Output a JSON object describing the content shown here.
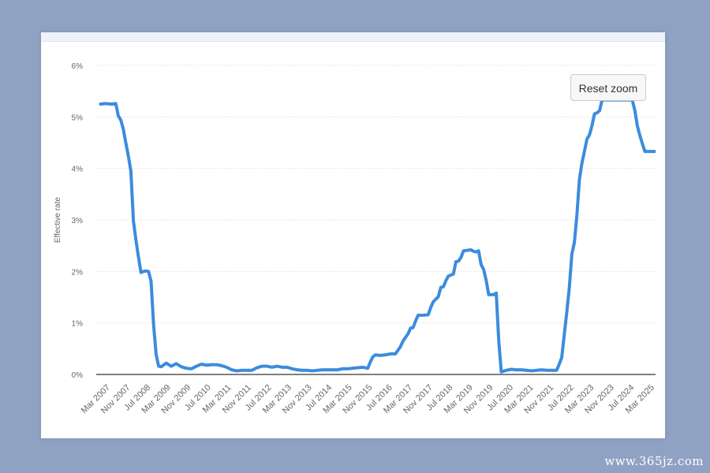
{
  "chart_data": {
    "type": "line",
    "title": "",
    "ylabel": "Effective rate",
    "xlabel": "",
    "ylim": [
      0,
      6
    ],
    "yticks": [
      "0%",
      "1%",
      "2%",
      "3%",
      "4%",
      "5%",
      "6%"
    ],
    "grid": true,
    "legend": "none",
    "line_color": "#3b8cde",
    "x_ticklabels": [
      "Mar 2007",
      "Nov 2007",
      "Jul 2008",
      "Mar 2009",
      "Nov 2009",
      "Jul 2010",
      "Mar 2011",
      "Nov 2011",
      "Jul 2012",
      "Mar 2013",
      "Nov 2013",
      "Jul 2014",
      "Mar 2015",
      "Nov 2015",
      "Jul 2016",
      "Mar 2017",
      "Nov 2017",
      "Jul 2018",
      "Mar 2019",
      "Nov 2019",
      "Jul 2020",
      "Mar 2021",
      "Nov 2021",
      "Jul 2022",
      "Mar 2023",
      "Nov 2023",
      "Jul 2024",
      "Mar 2025"
    ],
    "series": [
      {
        "points": [
          [
            "Jan 2007",
            5.25
          ],
          [
            "Mar 2007",
            5.26
          ],
          [
            "May 2007",
            5.25
          ],
          [
            "Jul 2007",
            5.26
          ],
          [
            "Aug 2007",
            5.02
          ],
          [
            "Sep 2007",
            4.94
          ],
          [
            "Oct 2007",
            4.76
          ],
          [
            "Nov 2007",
            4.49
          ],
          [
            "Dec 2007",
            4.24
          ],
          [
            "Jan 2008",
            3.94
          ],
          [
            "Feb 2008",
            2.98
          ],
          [
            "Mar 2008",
            2.61
          ],
          [
            "Apr 2008",
            2.28
          ],
          [
            "May 2008",
            1.98
          ],
          [
            "Jun 2008",
            2.0
          ],
          [
            "Jul 2008",
            2.01
          ],
          [
            "Aug 2008",
            2.0
          ],
          [
            "Sep 2008",
            1.81
          ],
          [
            "Oct 2008",
            0.97
          ],
          [
            "Nov 2008",
            0.39
          ],
          [
            "Dec 2008",
            0.16
          ],
          [
            "Jan 2009",
            0.15
          ],
          [
            "Mar 2009",
            0.22
          ],
          [
            "May 2009",
            0.16
          ],
          [
            "Jul 2009",
            0.21
          ],
          [
            "Sep 2009",
            0.15
          ],
          [
            "Nov 2009",
            0.12
          ],
          [
            "Jan 2010",
            0.11
          ],
          [
            "Mar 2010",
            0.16
          ],
          [
            "May 2010",
            0.2
          ],
          [
            "Jul 2010",
            0.18
          ],
          [
            "Sep 2010",
            0.19
          ],
          [
            "Nov 2010",
            0.19
          ],
          [
            "Jan 2011",
            0.17
          ],
          [
            "Mar 2011",
            0.14
          ],
          [
            "May 2011",
            0.09
          ],
          [
            "Jul 2011",
            0.07
          ],
          [
            "Sep 2011",
            0.08
          ],
          [
            "Nov 2011",
            0.08
          ],
          [
            "Jan 2012",
            0.08
          ],
          [
            "Mar 2012",
            0.13
          ],
          [
            "May 2012",
            0.16
          ],
          [
            "Jul 2012",
            0.16
          ],
          [
            "Sep 2012",
            0.14
          ],
          [
            "Nov 2012",
            0.16
          ],
          [
            "Jan 2013",
            0.14
          ],
          [
            "Mar 2013",
            0.14
          ],
          [
            "May 2013",
            0.11
          ],
          [
            "Jul 2013",
            0.09
          ],
          [
            "Sep 2013",
            0.08
          ],
          [
            "Nov 2013",
            0.08
          ],
          [
            "Jan 2014",
            0.07
          ],
          [
            "Mar 2014",
            0.08
          ],
          [
            "May 2014",
            0.09
          ],
          [
            "Jul 2014",
            0.09
          ],
          [
            "Sep 2014",
            0.09
          ],
          [
            "Nov 2014",
            0.09
          ],
          [
            "Jan 2015",
            0.11
          ],
          [
            "Mar 2015",
            0.11
          ],
          [
            "May 2015",
            0.12
          ],
          [
            "Jul 2015",
            0.13
          ],
          [
            "Sep 2015",
            0.14
          ],
          [
            "Nov 2015",
            0.12
          ],
          [
            "Dec 2015",
            0.24
          ],
          [
            "Jan 2016",
            0.34
          ],
          [
            "Feb 2016",
            0.38
          ],
          [
            "Apr 2016",
            0.37
          ],
          [
            "Jun 2016",
            0.38
          ],
          [
            "Aug 2016",
            0.4
          ],
          [
            "Oct 2016",
            0.4
          ],
          [
            "Dec 2016",
            0.54
          ],
          [
            "Jan 2017",
            0.65
          ],
          [
            "Mar 2017",
            0.79
          ],
          [
            "Apr 2017",
            0.9
          ],
          [
            "May 2017",
            0.91
          ],
          [
            "Jun 2017",
            1.04
          ],
          [
            "Jul 2017",
            1.15
          ],
          [
            "Sep 2017",
            1.15
          ],
          [
            "Nov 2017",
            1.16
          ],
          [
            "Dec 2017",
            1.3
          ],
          [
            "Jan 2018",
            1.41
          ],
          [
            "Mar 2018",
            1.51
          ],
          [
            "Apr 2018",
            1.69
          ],
          [
            "May 2018",
            1.7
          ],
          [
            "Jun 2018",
            1.82
          ],
          [
            "Jul 2018",
            1.91
          ],
          [
            "Sep 2018",
            1.95
          ],
          [
            "Oct 2018",
            2.19
          ],
          [
            "Nov 2018",
            2.2
          ],
          [
            "Dec 2018",
            2.27
          ],
          [
            "Jan 2019",
            2.4
          ],
          [
            "Apr 2019",
            2.42
          ],
          [
            "May 2019",
            2.39
          ],
          [
            "Jun 2019",
            2.38
          ],
          [
            "Jul 2019",
            2.4
          ],
          [
            "Aug 2019",
            2.13
          ],
          [
            "Sep 2019",
            2.04
          ],
          [
            "Oct 2019",
            1.83
          ],
          [
            "Nov 2019",
            1.55
          ],
          [
            "Dec 2019",
            1.55
          ],
          [
            "Jan 2020",
            1.55
          ],
          [
            "Feb 2020",
            1.58
          ],
          [
            "Mar 2020",
            0.65
          ],
          [
            "Apr 2020",
            0.05
          ],
          [
            "Jun 2020",
            0.08
          ],
          [
            "Aug 2020",
            0.1
          ],
          [
            "Oct 2020",
            0.09
          ],
          [
            "Dec 2020",
            0.09
          ],
          [
            "Feb 2021",
            0.08
          ],
          [
            "Apr 2021",
            0.07
          ],
          [
            "Jun 2021",
            0.08
          ],
          [
            "Aug 2021",
            0.09
          ],
          [
            "Oct 2021",
            0.08
          ],
          [
            "Dec 2021",
            0.08
          ],
          [
            "Jan 2022",
            0.08
          ],
          [
            "Feb 2022",
            0.08
          ],
          [
            "Mar 2022",
            0.2
          ],
          [
            "Apr 2022",
            0.33
          ],
          [
            "May 2022",
            0.77
          ],
          [
            "Jun 2022",
            1.21
          ],
          [
            "Jul 2022",
            1.68
          ],
          [
            "Aug 2022",
            2.33
          ],
          [
            "Sep 2022",
            2.56
          ],
          [
            "Oct 2022",
            3.08
          ],
          [
            "Nov 2022",
            3.78
          ],
          [
            "Dec 2022",
            4.1
          ],
          [
            "Jan 2023",
            4.33
          ],
          [
            "Feb 2023",
            4.57
          ],
          [
            "Mar 2023",
            4.65
          ],
          [
            "Apr 2023",
            4.83
          ],
          [
            "May 2023",
            5.06
          ],
          [
            "Jun 2023",
            5.08
          ],
          [
            "Jul 2023",
            5.12
          ],
          [
            "Aug 2023",
            5.33
          ],
          [
            "Sep 2023",
            5.33
          ],
          [
            "Jun 2024",
            5.33
          ],
          [
            "Jul 2024",
            5.33
          ],
          [
            "Aug 2024",
            5.33
          ],
          [
            "Sep 2024",
            5.13
          ],
          [
            "Oct 2024",
            4.83
          ],
          [
            "Nov 2024",
            4.64
          ],
          [
            "Dec 2024",
            4.48
          ],
          [
            "Jan 2025",
            4.33
          ],
          [
            "Mar 2025",
            4.33
          ],
          [
            "May 2025",
            4.33
          ],
          [
            "Jul 2025",
            4.33
          ]
        ]
      }
    ]
  },
  "controls": {
    "reset_zoom_label": "Reset zoom"
  },
  "watermark": "www.365jz.com"
}
